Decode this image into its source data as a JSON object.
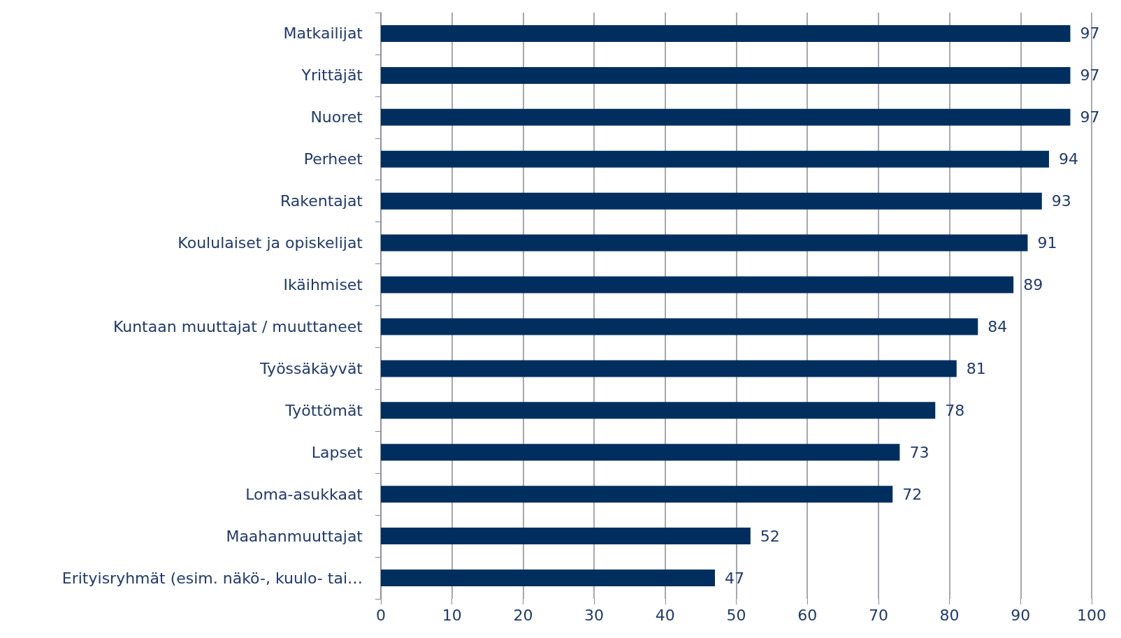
{
  "chart_data": {
    "type": "bar",
    "orientation": "horizontal",
    "categories": [
      "Matkailijat",
      "Yrittäjät",
      "Nuoret",
      "Perheet",
      "Rakentajat",
      "Koululaiset ja opiskelijat",
      "Ikäihmiset",
      "Kuntaan muuttajat / muuttaneet",
      "Työssäkäyvät",
      "Työttömät",
      "Lapset",
      "Loma-asukkaat",
      "Maahanmuuttajat",
      "Erityisryhmät (esim. näkö-, kuulo- tai…"
    ],
    "values": [
      97,
      97,
      97,
      94,
      93,
      91,
      89,
      84,
      81,
      78,
      73,
      72,
      52,
      47
    ],
    "color": "#002f5f",
    "xlim": [
      0,
      100
    ],
    "xticks": [
      0,
      10,
      20,
      30,
      40,
      50,
      60,
      70,
      80,
      90,
      100
    ],
    "grid": "x",
    "data_labels": true
  }
}
